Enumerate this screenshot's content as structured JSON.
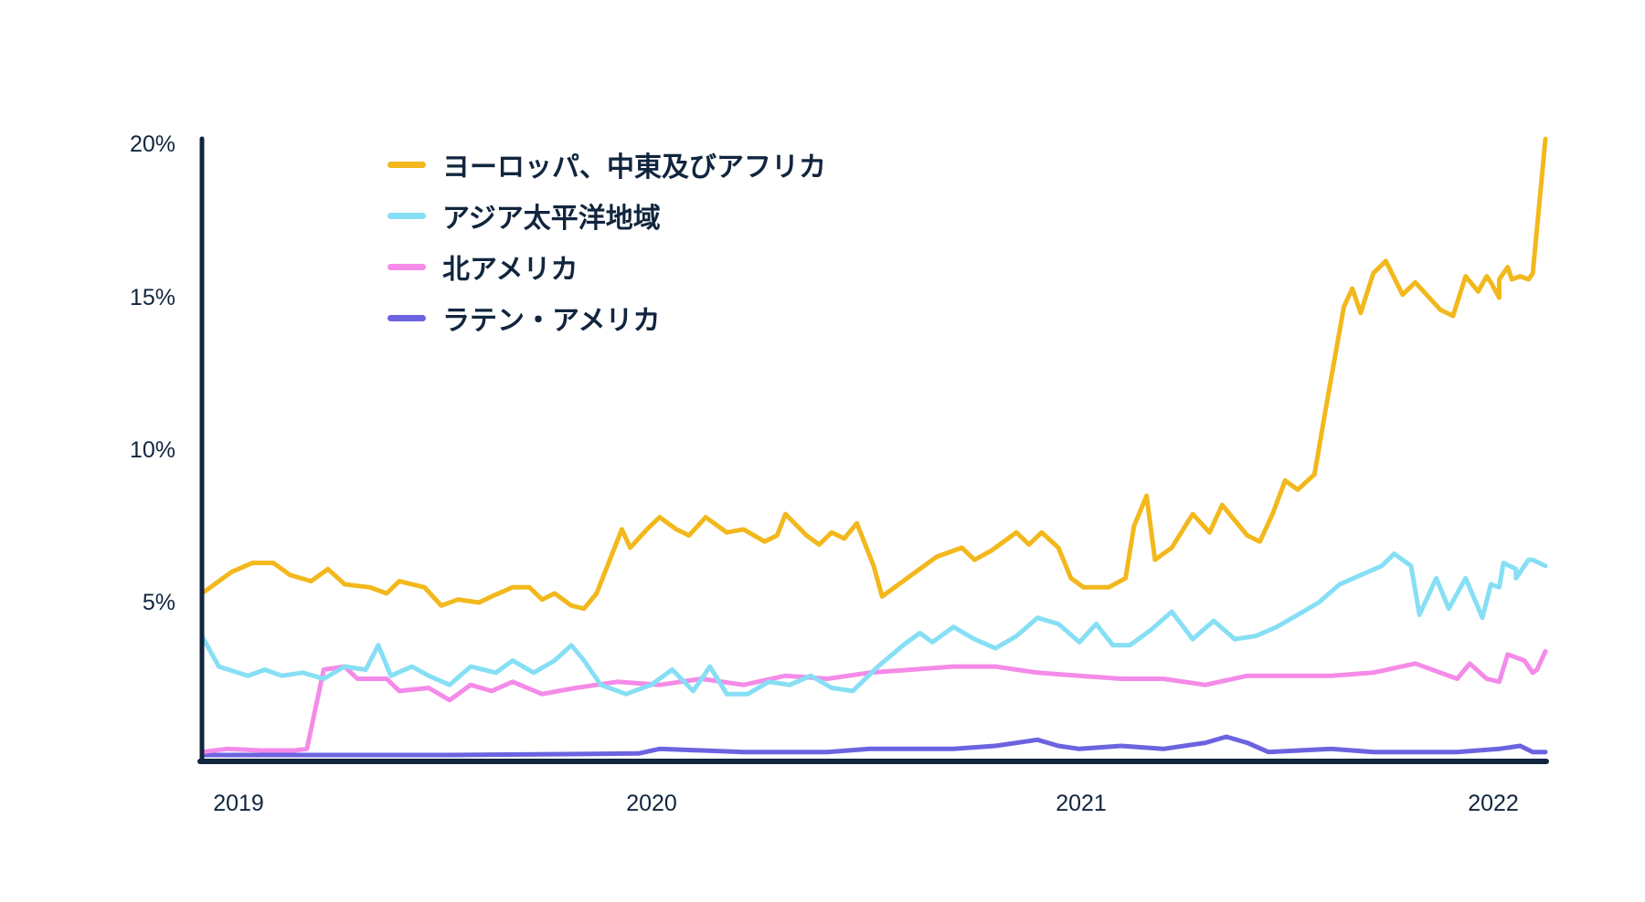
{
  "chart_data": {
    "type": "line",
    "title": "",
    "xlabel": "",
    "ylabel": "",
    "ylim": [
      0,
      20
    ],
    "xlim": [
      2018.91,
      2022.11
    ],
    "yticks": [
      "5%",
      "10%",
      "15%",
      "20%"
    ],
    "ytick_values": [
      5,
      10,
      15,
      20
    ],
    "xticks": [
      "2019",
      "2020",
      "2021",
      "2022"
    ],
    "xtick_values": [
      2019,
      2020,
      2021,
      2022
    ],
    "grid": false,
    "legend_position": "upper-left",
    "series": [
      {
        "name": "ヨーロッパ、中東及びアフリカ",
        "color": "#f2b81c",
        "points": [
          [
            2018.91,
            5.3
          ],
          [
            2018.98,
            6.0
          ],
          [
            2019.03,
            6.3
          ],
          [
            2019.08,
            6.3
          ],
          [
            2019.12,
            5.9
          ],
          [
            2019.17,
            5.7
          ],
          [
            2019.21,
            6.1
          ],
          [
            2019.25,
            5.6
          ],
          [
            2019.31,
            5.5
          ],
          [
            2019.35,
            5.3
          ],
          [
            2019.38,
            5.7
          ],
          [
            2019.44,
            5.5
          ],
          [
            2019.48,
            4.9
          ],
          [
            2019.52,
            5.1
          ],
          [
            2019.57,
            5.0
          ],
          [
            2019.6,
            5.2
          ],
          [
            2019.65,
            5.5
          ],
          [
            2019.69,
            5.5
          ],
          [
            2019.72,
            5.1
          ],
          [
            2019.75,
            5.3
          ],
          [
            2019.79,
            4.9
          ],
          [
            2019.82,
            4.8
          ],
          [
            2019.85,
            5.3
          ],
          [
            2019.91,
            7.4
          ],
          [
            2019.93,
            6.8
          ],
          [
            2019.97,
            7.4
          ],
          [
            2020.0,
            7.8
          ],
          [
            2020.04,
            7.4
          ],
          [
            2020.07,
            7.2
          ],
          [
            2020.11,
            7.8
          ],
          [
            2020.16,
            7.3
          ],
          [
            2020.2,
            7.4
          ],
          [
            2020.25,
            7.0
          ],
          [
            2020.28,
            7.2
          ],
          [
            2020.3,
            7.9
          ],
          [
            2020.35,
            7.2
          ],
          [
            2020.38,
            6.9
          ],
          [
            2020.41,
            7.3
          ],
          [
            2020.44,
            7.1
          ],
          [
            2020.47,
            7.6
          ],
          [
            2020.51,
            6.2
          ],
          [
            2020.53,
            5.2
          ],
          [
            2020.56,
            5.5
          ],
          [
            2020.6,
            5.9
          ],
          [
            2020.66,
            6.5
          ],
          [
            2020.72,
            6.8
          ],
          [
            2020.75,
            6.4
          ],
          [
            2020.79,
            6.7
          ],
          [
            2020.85,
            7.3
          ],
          [
            2020.88,
            6.9
          ],
          [
            2020.91,
            7.3
          ],
          [
            2020.95,
            6.8
          ],
          [
            2020.98,
            5.8
          ],
          [
            2021.01,
            5.5
          ],
          [
            2021.07,
            5.5
          ],
          [
            2021.11,
            5.8
          ],
          [
            2021.13,
            7.5
          ],
          [
            2021.16,
            8.5
          ],
          [
            2021.18,
            6.4
          ],
          [
            2021.22,
            6.8
          ],
          [
            2021.27,
            7.9
          ],
          [
            2021.31,
            7.3
          ],
          [
            2021.34,
            8.2
          ],
          [
            2021.4,
            7.2
          ],
          [
            2021.43,
            7.0
          ],
          [
            2021.46,
            7.9
          ],
          [
            2021.49,
            9.0
          ],
          [
            2021.52,
            8.7
          ],
          [
            2021.56,
            9.2
          ],
          [
            2021.59,
            11.6
          ],
          [
            2021.63,
            14.7
          ],
          [
            2021.65,
            15.3
          ],
          [
            2021.67,
            14.5
          ],
          [
            2021.7,
            15.8
          ],
          [
            2021.73,
            16.2
          ],
          [
            2021.77,
            15.1
          ],
          [
            2021.8,
            15.5
          ],
          [
            2021.86,
            14.6
          ],
          [
            2021.89,
            14.4
          ],
          [
            2021.92,
            15.7
          ],
          [
            2021.95,
            15.2
          ],
          [
            2021.97,
            15.7
          ],
          [
            2022.0,
            15.0
          ],
          [
            2022.03,
            15.6
          ],
          [
            2022.07,
            15.6
          ],
          [
            2021.98,
            15.5
          ],
          [
            2022.0,
            15.6
          ],
          [
            2022.02,
            16.0
          ],
          [
            2022.05,
            15.7
          ],
          [
            2022.08,
            15.8
          ],
          [
            2022.11,
            20.2
          ]
        ]
      },
      {
        "name": "アジア太平洋地域",
        "color": "#86dff4",
        "points": [
          [
            2018.91,
            3.9
          ],
          [
            2018.95,
            2.9
          ],
          [
            2019.02,
            2.6
          ],
          [
            2019.06,
            2.8
          ],
          [
            2019.1,
            2.6
          ],
          [
            2019.15,
            2.7
          ],
          [
            2019.2,
            2.5
          ],
          [
            2019.25,
            2.9
          ],
          [
            2019.3,
            2.8
          ],
          [
            2019.33,
            3.6
          ],
          [
            2019.36,
            2.6
          ],
          [
            2019.41,
            2.9
          ],
          [
            2019.45,
            2.6
          ],
          [
            2019.5,
            2.3
          ],
          [
            2019.55,
            2.9
          ],
          [
            2019.61,
            2.7
          ],
          [
            2019.65,
            3.1
          ],
          [
            2019.7,
            2.7
          ],
          [
            2019.75,
            3.1
          ],
          [
            2019.79,
            3.6
          ],
          [
            2019.82,
            3.1
          ],
          [
            2019.86,
            2.3
          ],
          [
            2019.92,
            2.0
          ],
          [
            2019.98,
            2.3
          ],
          [
            2020.03,
            2.8
          ],
          [
            2020.08,
            2.1
          ],
          [
            2020.12,
            2.9
          ],
          [
            2020.16,
            2.0
          ],
          [
            2020.21,
            2.0
          ],
          [
            2020.26,
            2.4
          ],
          [
            2020.31,
            2.3
          ],
          [
            2020.36,
            2.6
          ],
          [
            2020.41,
            2.2
          ],
          [
            2020.46,
            2.1
          ],
          [
            2020.52,
            2.9
          ],
          [
            2020.58,
            3.6
          ],
          [
            2020.62,
            4.0
          ],
          [
            2020.65,
            3.7
          ],
          [
            2020.7,
            4.2
          ],
          [
            2020.75,
            3.8
          ],
          [
            2020.8,
            3.5
          ],
          [
            2020.85,
            3.9
          ],
          [
            2020.9,
            4.5
          ],
          [
            2020.95,
            4.3
          ],
          [
            2021.0,
            3.7
          ],
          [
            2021.04,
            4.3
          ],
          [
            2021.08,
            3.6
          ],
          [
            2021.12,
            3.6
          ],
          [
            2021.17,
            4.1
          ],
          [
            2021.22,
            4.7
          ],
          [
            2021.27,
            3.8
          ],
          [
            2021.32,
            4.4
          ],
          [
            2021.37,
            3.8
          ],
          [
            2021.42,
            3.9
          ],
          [
            2021.47,
            4.2
          ],
          [
            2021.52,
            4.6
          ],
          [
            2021.57,
            5.0
          ],
          [
            2021.62,
            5.6
          ],
          [
            2021.67,
            5.9
          ],
          [
            2021.72,
            6.2
          ],
          [
            2021.75,
            6.6
          ],
          [
            2021.79,
            6.2
          ],
          [
            2021.81,
            4.6
          ],
          [
            2021.85,
            5.8
          ],
          [
            2021.88,
            4.8
          ],
          [
            2021.92,
            5.8
          ],
          [
            2021.96,
            4.5
          ],
          [
            2022.0,
            5.5
          ],
          [
            2022.04,
            6.1
          ],
          [
            2022.08,
            6.4
          ],
          [
            2021.98,
            5.6
          ],
          [
            2022.01,
            6.3
          ],
          [
            2022.04,
            5.8
          ],
          [
            2022.07,
            6.4
          ],
          [
            2022.11,
            6.2
          ]
        ]
      },
      {
        "name": "北アメリカ",
        "color": "#f48be8",
        "points": [
          [
            2018.91,
            0.1
          ],
          [
            2018.97,
            0.2
          ],
          [
            2019.05,
            0.15
          ],
          [
            2019.13,
            0.15
          ],
          [
            2019.16,
            0.2
          ],
          [
            2019.2,
            2.8
          ],
          [
            2019.25,
            2.9
          ],
          [
            2019.28,
            2.5
          ],
          [
            2019.35,
            2.5
          ],
          [
            2019.38,
            2.1
          ],
          [
            2019.45,
            2.2
          ],
          [
            2019.5,
            1.8
          ],
          [
            2019.55,
            2.3
          ],
          [
            2019.6,
            2.1
          ],
          [
            2019.65,
            2.4
          ],
          [
            2019.72,
            2.0
          ],
          [
            2019.8,
            2.2
          ],
          [
            2019.9,
            2.4
          ],
          [
            2020.0,
            2.3
          ],
          [
            2020.1,
            2.5
          ],
          [
            2020.2,
            2.3
          ],
          [
            2020.3,
            2.6
          ],
          [
            2020.4,
            2.5
          ],
          [
            2020.5,
            2.7
          ],
          [
            2020.6,
            2.8
          ],
          [
            2020.7,
            2.9
          ],
          [
            2020.8,
            2.9
          ],
          [
            2020.9,
            2.7
          ],
          [
            2021.0,
            2.6
          ],
          [
            2021.1,
            2.5
          ],
          [
            2021.2,
            2.5
          ],
          [
            2021.3,
            2.3
          ],
          [
            2021.4,
            2.6
          ],
          [
            2021.5,
            2.6
          ],
          [
            2021.6,
            2.6
          ],
          [
            2021.7,
            2.7
          ],
          [
            2021.8,
            3.0
          ],
          [
            2021.9,
            2.5
          ],
          [
            2022.0,
            2.4
          ],
          [
            2022.08,
            2.7
          ],
          [
            2021.93,
            3.0
          ],
          [
            2021.97,
            2.5
          ],
          [
            2022.02,
            3.3
          ],
          [
            2022.06,
            3.1
          ],
          [
            2022.09,
            2.8
          ],
          [
            2022.11,
            3.4
          ]
        ]
      },
      {
        "name": "ラテン・アメリカ",
        "color": "#6c63e0",
        "points": [
          [
            2018.91,
            0.0
          ],
          [
            2019.5,
            0.0
          ],
          [
            2019.95,
            0.05
          ],
          [
            2020.0,
            0.2
          ],
          [
            2020.2,
            0.1
          ],
          [
            2020.4,
            0.1
          ],
          [
            2020.5,
            0.2
          ],
          [
            2020.6,
            0.2
          ],
          [
            2020.7,
            0.2
          ],
          [
            2020.8,
            0.3
          ],
          [
            2020.9,
            0.5
          ],
          [
            2020.95,
            0.3
          ],
          [
            2021.0,
            0.2
          ],
          [
            2021.1,
            0.3
          ],
          [
            2021.2,
            0.2
          ],
          [
            2021.3,
            0.4
          ],
          [
            2021.35,
            0.6
          ],
          [
            2021.4,
            0.4
          ],
          [
            2021.45,
            0.1
          ],
          [
            2021.6,
            0.2
          ],
          [
            2021.7,
            0.1
          ],
          [
            2021.8,
            0.1
          ],
          [
            2021.9,
            0.1
          ],
          [
            2022.0,
            0.2
          ],
          [
            2022.05,
            0.3
          ],
          [
            2022.08,
            0.1
          ],
          [
            2022.11,
            0.1
          ]
        ]
      }
    ]
  }
}
